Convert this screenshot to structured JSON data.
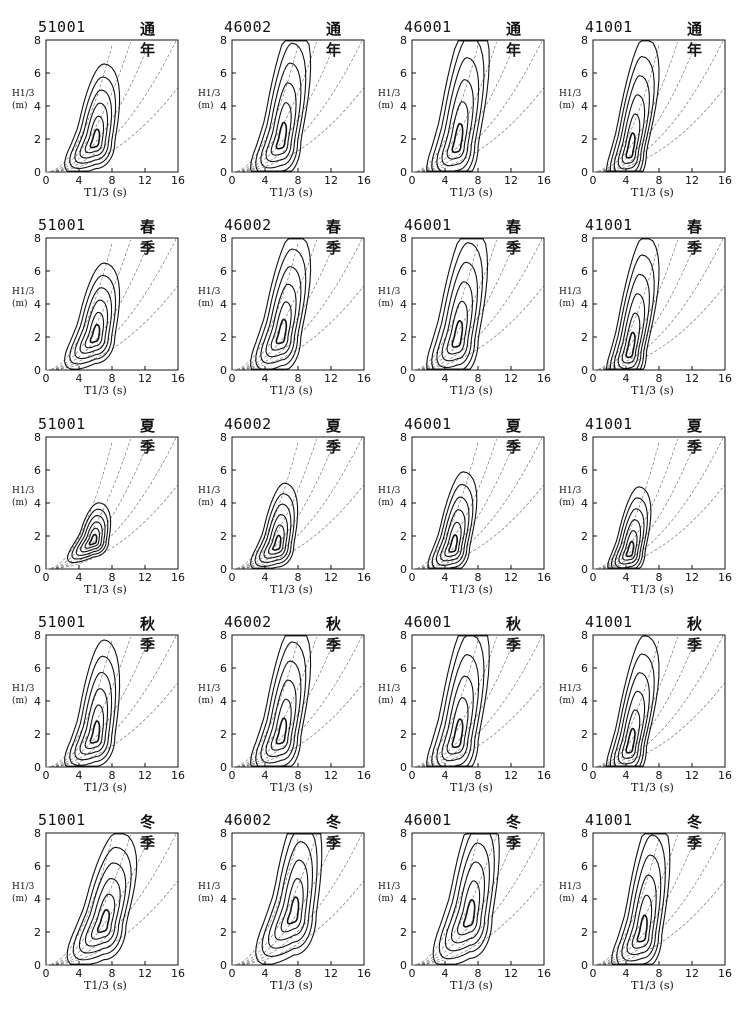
{
  "chart_data": {
    "type": "contour",
    "rows": 5,
    "cols": 4,
    "xlabel": "T1/3 (s)",
    "ylabel": "H1/3 (m)",
    "xlim": [
      0,
      16
    ],
    "ylim": [
      0,
      8
    ],
    "xticks": [
      "0",
      "4",
      "8",
      "12",
      "16"
    ],
    "yticks": [
      "0",
      "2",
      "4",
      "6",
      "8"
    ],
    "line_color": "#111111",
    "panels": [
      {
        "station": "51001",
        "season": "通年",
        "center": [
          6.0,
          1.8
        ],
        "spread": [
          1.3,
          1.0
        ],
        "peak": [
          9.0,
          5.3
        ]
      },
      {
        "station": "46002",
        "season": "通年",
        "center": [
          6.0,
          1.8
        ],
        "spread": [
          1.3,
          1.3
        ],
        "peak": [
          10.5,
          7.5
        ]
      },
      {
        "station": "46001",
        "season": "通年",
        "center": [
          5.5,
          1.6
        ],
        "spread": [
          1.4,
          1.4
        ],
        "peak": [
          10.5,
          8.0
        ]
      },
      {
        "station": "41001",
        "season": "通年",
        "center": [
          4.5,
          1.2
        ],
        "spread": [
          1.1,
          1.2
        ],
        "peak": [
          9.5,
          6.8
        ]
      },
      {
        "station": "51001",
        "season": "春季",
        "center": [
          6.0,
          2.0
        ],
        "spread": [
          1.3,
          1.0
        ],
        "peak": [
          9.0,
          5.2
        ]
      },
      {
        "station": "46002",
        "season": "春季",
        "center": [
          6.0,
          2.0
        ],
        "spread": [
          1.3,
          1.3
        ],
        "peak": [
          10.5,
          6.8
        ]
      },
      {
        "station": "46001",
        "season": "春季",
        "center": [
          5.5,
          1.8
        ],
        "spread": [
          1.4,
          1.4
        ],
        "peak": [
          10.0,
          7.2
        ]
      },
      {
        "station": "41001",
        "season": "春季",
        "center": [
          4.5,
          1.1
        ],
        "spread": [
          1.1,
          1.2
        ],
        "peak": [
          9.5,
          6.8
        ]
      },
      {
        "station": "51001",
        "season": "夏季",
        "center": [
          5.8,
          1.7
        ],
        "spread": [
          1.0,
          0.6
        ],
        "peak": [
          7.5,
          3.2
        ]
      },
      {
        "station": "46002",
        "season": "夏季",
        "center": [
          5.5,
          1.4
        ],
        "spread": [
          1.1,
          0.8
        ],
        "peak": [
          8.0,
          4.2
        ]
      },
      {
        "station": "46001",
        "season": "夏季",
        "center": [
          5.0,
          1.3
        ],
        "spread": [
          1.1,
          0.9
        ],
        "peak": [
          8.5,
          4.8
        ]
      },
      {
        "station": "41001",
        "season": "夏季",
        "center": [
          4.5,
          1.0
        ],
        "spread": [
          1.0,
          0.8
        ],
        "peak": [
          7.5,
          4.0
        ]
      },
      {
        "station": "51001",
        "season": "秋季",
        "center": [
          6.0,
          1.8
        ],
        "spread": [
          1.3,
          1.1
        ],
        "peak": [
          9.0,
          6.4
        ]
      },
      {
        "station": "46002",
        "season": "秋季",
        "center": [
          6.0,
          1.8
        ],
        "spread": [
          1.3,
          1.3
        ],
        "peak": [
          10.5,
          7.2
        ]
      },
      {
        "station": "46001",
        "season": "秋季",
        "center": [
          5.5,
          1.6
        ],
        "spread": [
          1.4,
          1.4
        ],
        "peak": [
          10.5,
          7.8
        ]
      },
      {
        "station": "41001",
        "season": "秋季",
        "center": [
          4.5,
          1.2
        ],
        "spread": [
          1.1,
          1.2
        ],
        "peak": [
          9.5,
          6.6
        ]
      },
      {
        "station": "51001",
        "season": "冬季",
        "center": [
          7.0,
          2.4
        ],
        "spread": [
          1.5,
          1.3
        ],
        "peak": [
          12.0,
          6.4
        ]
      },
      {
        "station": "46002",
        "season": "冬季",
        "center": [
          7.5,
          3.0
        ],
        "spread": [
          1.5,
          1.5
        ],
        "peak": [
          11.0,
          7.8
        ]
      },
      {
        "station": "46001",
        "season": "冬季",
        "center": [
          7.0,
          2.8
        ],
        "spread": [
          1.5,
          1.5
        ],
        "peak": [
          11.0,
          7.8
        ]
      },
      {
        "station": "41001",
        "season": "冬季",
        "center": [
          6.0,
          1.8
        ],
        "spread": [
          1.3,
          1.3
        ],
        "peak": [
          10.0,
          7.6
        ]
      }
    ]
  }
}
